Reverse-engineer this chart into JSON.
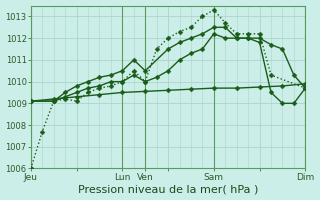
{
  "bg_color": "#cceee8",
  "grid_color": "#aad4cc",
  "line_color": "#1a5c1a",
  "marker_color": "#1a5c1a",
  "xlabel": "Pression niveau de la mer( hPa )",
  "xlabel_fontsize": 8,
  "ylim": [
    1006.0,
    1013.5
  ],
  "yticks": [
    1006,
    1007,
    1008,
    1009,
    1010,
    1011,
    1012,
    1013
  ],
  "xtick_labels": [
    "Jeu",
    "",
    "Lun",
    "Ven",
    "",
    "Sam",
    "",
    "Dim"
  ],
  "xtick_positions": [
    0,
    12,
    24,
    30,
    36,
    48,
    60,
    72
  ],
  "vline_positions": [
    0,
    24,
    30,
    48,
    72
  ],
  "series": [
    {
      "x": [
        0,
        3,
        6,
        9,
        12,
        15,
        18,
        21,
        24,
        27,
        30,
        33,
        36,
        39,
        42,
        45,
        48,
        51,
        54,
        57,
        60,
        63,
        72
      ],
      "y": [
        1006.0,
        1007.7,
        1009.1,
        1009.2,
        1009.1,
        1009.5,
        1009.7,
        1009.8,
        1010.0,
        1010.5,
        1010.0,
        1011.5,
        1012.0,
        1012.3,
        1012.5,
        1013.0,
        1013.3,
        1012.7,
        1012.2,
        1012.2,
        1012.2,
        1010.3,
        1009.7
      ],
      "style": ":",
      "marker": "D",
      "markersize": 2.5,
      "linewidth": 1.0
    },
    {
      "x": [
        0,
        6,
        9,
        12,
        15,
        18,
        21,
        24,
        27,
        30,
        33,
        36,
        39,
        42,
        45,
        48,
        51,
        54,
        57,
        60,
        63,
        66,
        69,
        72
      ],
      "y": [
        1009.1,
        1009.1,
        1009.3,
        1009.5,
        1009.7,
        1009.8,
        1010.0,
        1010.0,
        1010.3,
        1010.0,
        1010.2,
        1010.5,
        1011.0,
        1011.3,
        1011.5,
        1012.2,
        1012.0,
        1012.0,
        1012.0,
        1012.0,
        1011.7,
        1011.5,
        1010.3,
        1009.7
      ],
      "style": "-",
      "marker": "D",
      "markersize": 2.5,
      "linewidth": 1.0
    },
    {
      "x": [
        0,
        6,
        9,
        12,
        15,
        18,
        21,
        24,
        27,
        30,
        36,
        39,
        42,
        45,
        48,
        51,
        54,
        57,
        60,
        63,
        66,
        69,
        72
      ],
      "y": [
        1009.1,
        1009.1,
        1009.5,
        1009.8,
        1010.0,
        1010.2,
        1010.3,
        1010.5,
        1011.0,
        1010.5,
        1011.5,
        1011.8,
        1012.0,
        1012.2,
        1012.5,
        1012.5,
        1012.0,
        1012.0,
        1011.8,
        1009.5,
        1009.0,
        1009.0,
        1009.7
      ],
      "style": "-",
      "marker": "D",
      "markersize": 2.5,
      "linewidth": 1.0
    },
    {
      "x": [
        0,
        6,
        12,
        18,
        24,
        30,
        36,
        42,
        48,
        54,
        60,
        66,
        72
      ],
      "y": [
        1009.1,
        1009.2,
        1009.3,
        1009.4,
        1009.5,
        1009.55,
        1009.6,
        1009.65,
        1009.7,
        1009.7,
        1009.75,
        1009.8,
        1009.9
      ],
      "style": "-",
      "marker": "D",
      "markersize": 2.5,
      "linewidth": 1.0
    }
  ]
}
